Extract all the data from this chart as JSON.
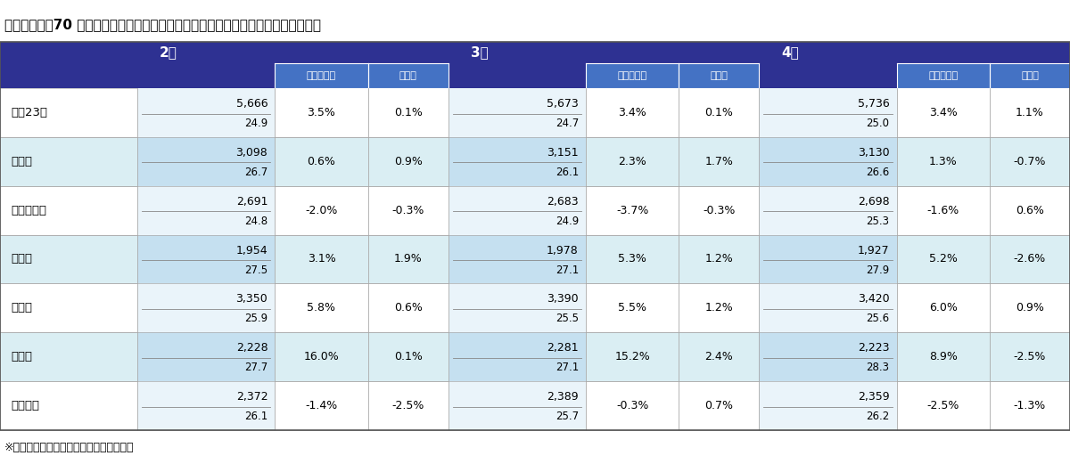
{
  "title": "主要都市別　70 ㎡あたりの中古マンション価格　（図中の数値は１・７月の価格）",
  "footnote": "※上段は価格（単位：万円）、下段は築年",
  "months": [
    "2月",
    "3月",
    "4月"
  ],
  "sub_headers": [
    "前年同月比",
    "前月比"
  ],
  "cities": [
    "東京23区",
    "横浜市",
    "さいたま市",
    "千葉市",
    "大阪市",
    "神戸市",
    "名古屋市"
  ],
  "data": [
    {
      "city": "東京23区",
      "feb_price": "5,666",
      "feb_year": "24.9",
      "feb_yoy": "3.5%",
      "feb_mom": "0.1%",
      "mar_price": "5,673",
      "mar_year": "24.7",
      "mar_yoy": "3.4%",
      "mar_mom": "0.1%",
      "apr_price": "5,736",
      "apr_year": "25.0",
      "apr_yoy": "3.4%",
      "apr_mom": "1.1%"
    },
    {
      "city": "横浜市",
      "feb_price": "3,098",
      "feb_year": "26.7",
      "feb_yoy": "0.6%",
      "feb_mom": "0.9%",
      "mar_price": "3,151",
      "mar_year": "26.1",
      "mar_yoy": "2.3%",
      "mar_mom": "1.7%",
      "apr_price": "3,130",
      "apr_year": "26.6",
      "apr_yoy": "1.3%",
      "apr_mom": "-0.7%"
    },
    {
      "city": "さいたま市",
      "feb_price": "2,691",
      "feb_year": "24.8",
      "feb_yoy": "-2.0%",
      "feb_mom": "-0.3%",
      "mar_price": "2,683",
      "mar_year": "24.9",
      "mar_yoy": "-3.7%",
      "mar_mom": "-0.3%",
      "apr_price": "2,698",
      "apr_year": "25.3",
      "apr_yoy": "-1.6%",
      "apr_mom": "0.6%"
    },
    {
      "city": "千葉市",
      "feb_price": "1,954",
      "feb_year": "27.5",
      "feb_yoy": "3.1%",
      "feb_mom": "1.9%",
      "mar_price": "1,978",
      "mar_year": "27.1",
      "mar_yoy": "5.3%",
      "mar_mom": "1.2%",
      "apr_price": "1,927",
      "apr_year": "27.9",
      "apr_yoy": "5.2%",
      "apr_mom": "-2.6%"
    },
    {
      "city": "大阪市",
      "feb_price": "3,350",
      "feb_year": "25.9",
      "feb_yoy": "5.8%",
      "feb_mom": "0.6%",
      "mar_price": "3,390",
      "mar_year": "25.5",
      "mar_yoy": "5.5%",
      "mar_mom": "1.2%",
      "apr_price": "3,420",
      "apr_year": "25.6",
      "apr_yoy": "6.0%",
      "apr_mom": "0.9%"
    },
    {
      "city": "神戸市",
      "feb_price": "2,228",
      "feb_year": "27.7",
      "feb_yoy": "16.0%",
      "feb_mom": "0.1%",
      "mar_price": "2,281",
      "mar_year": "27.1",
      "mar_yoy": "15.2%",
      "mar_mom": "2.4%",
      "apr_price": "2,223",
      "apr_year": "28.3",
      "apr_yoy": "8.9%",
      "apr_mom": "-2.5%"
    },
    {
      "city": "名古屋市",
      "feb_price": "2,372",
      "feb_year": "26.1",
      "feb_yoy": "-1.4%",
      "feb_mom": "-2.5%",
      "mar_price": "2,389",
      "mar_year": "25.7",
      "mar_yoy": "-0.3%",
      "mar_mom": "0.7%",
      "apr_price": "2,359",
      "apr_year": "26.2",
      "apr_yoy": "-2.5%",
      "apr_mom": "-1.3%"
    }
  ],
  "colors": {
    "header_dark": "#2E3192",
    "header_med": "#4472C4",
    "row_blue": "#DAEEF3",
    "row_white": "#FFFFFF",
    "price_bg_blue": "#C5E0F0",
    "price_bg_wht": "#EAF4FA",
    "border_dark": "#555555",
    "border_light": "#AAAAAA",
    "text_white": "#FFFFFF",
    "text_black": "#000000"
  },
  "col_fracs": {
    "city": 0.13,
    "price": 0.13,
    "yoy": 0.088,
    "mom": 0.076
  }
}
